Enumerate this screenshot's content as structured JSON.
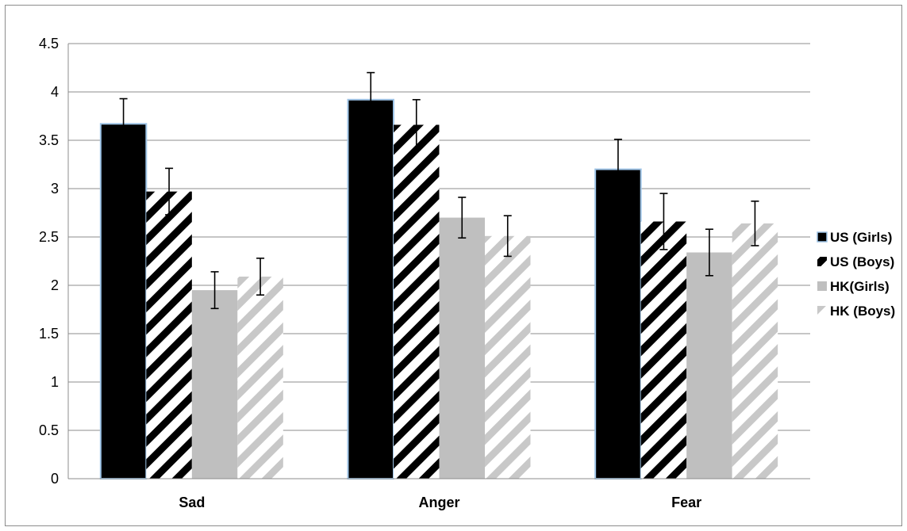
{
  "chart_data": {
    "type": "bar",
    "title": "",
    "xlabel": "",
    "ylabel": "",
    "ylim": [
      0,
      4.5
    ],
    "yticks": [
      "0",
      "0.5",
      "1",
      "1.5",
      "2",
      "2.5",
      "3",
      "3.5",
      "4",
      "4.5"
    ],
    "categories": [
      "Sad",
      "Anger",
      "Fear"
    ],
    "grid": true,
    "legend_position": "right",
    "series": [
      {
        "name": "US (Girls)",
        "values": [
          3.67,
          3.92,
          3.2
        ],
        "error": [
          0.26,
          0.28,
          0.31
        ],
        "fill": "solid",
        "color": "#000000",
        "outline": "#9dc3e6"
      },
      {
        "name": "US (Boys)",
        "values": [
          2.97,
          3.66,
          2.66
        ],
        "error": [
          0.24,
          0.26,
          0.29
        ],
        "fill": "stripes",
        "color": "#000000"
      },
      {
        "name": "HK(Girls)",
        "values": [
          1.95,
          2.7,
          2.34
        ],
        "error": [
          0.19,
          0.21,
          0.24
        ],
        "fill": "solid",
        "color": "#bfbfbf"
      },
      {
        "name": "HK (Boys)",
        "values": [
          2.09,
          2.51,
          2.64
        ],
        "error": [
          0.19,
          0.21,
          0.23
        ],
        "fill": "stripes",
        "color": "#c8c8c8"
      }
    ]
  }
}
